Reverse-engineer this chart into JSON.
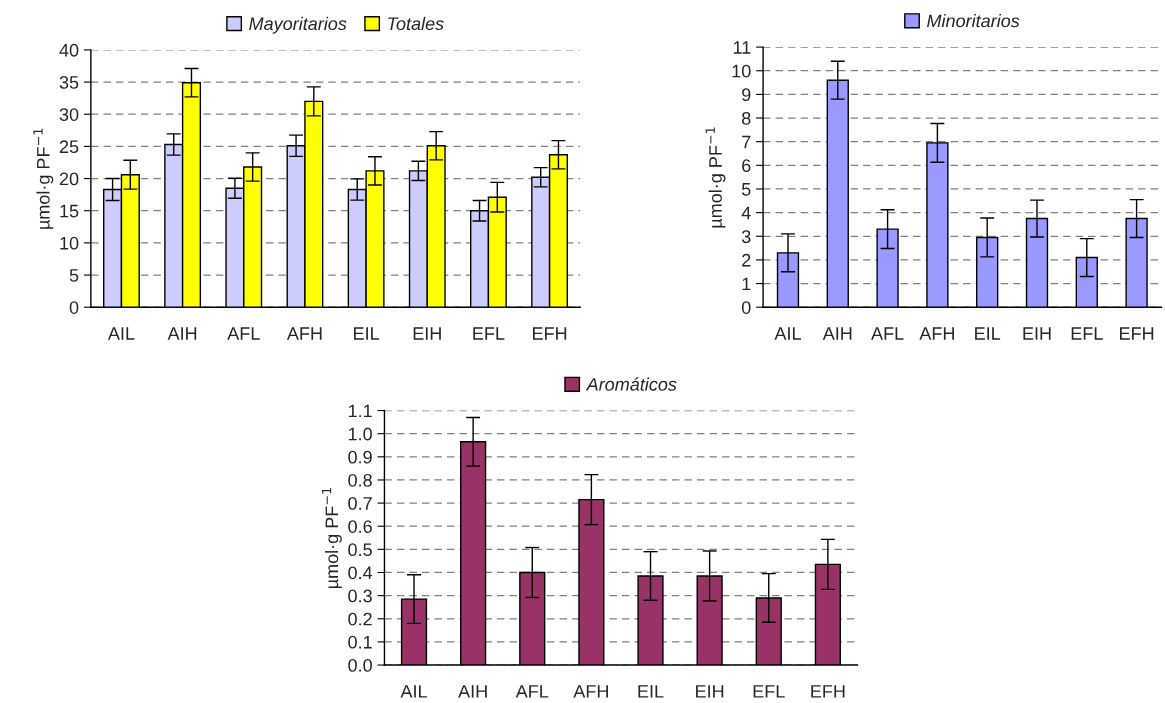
{
  "chart_data": [
    {
      "type": "bar",
      "categories": [
        "AIL",
        "AIH",
        "AFL",
        "AFH",
        "EIL",
        "EIH",
        "EFL",
        "EFH"
      ],
      "ylabel": "µmol·g PF$^{−1}$",
      "ylim": [
        0,
        40
      ],
      "yticks": [
        0,
        5,
        10,
        15,
        20,
        25,
        30,
        35,
        40
      ],
      "grid": "y",
      "legend": "top",
      "series": [
        {
          "name": "Mayoritarios",
          "color": "#ccccff",
          "values": [
            18.3,
            25.3,
            18.5,
            25.1,
            18.3,
            21.2,
            15.0,
            20.2
          ],
          "errors": [
            1.7,
            1.65,
            1.55,
            1.65,
            1.65,
            1.5,
            1.6,
            1.5
          ]
        },
        {
          "name": "Totales",
          "color": "#ffff00",
          "values": [
            20.6,
            34.9,
            21.8,
            32.0,
            21.2,
            25.1,
            17.1,
            23.7
          ],
          "errors": [
            2.25,
            2.2,
            2.2,
            2.25,
            2.2,
            2.2,
            2.3,
            2.2
          ]
        }
      ]
    },
    {
      "type": "bar",
      "categories": [
        "AIL",
        "AIH",
        "AFL",
        "AFH",
        "EIL",
        "EIH",
        "EFL",
        "EFH"
      ],
      "ylabel": "µmol·g PF$^{−1}$",
      "ylim": [
        0,
        11
      ],
      "yticks": [
        0,
        1,
        2,
        3,
        4,
        5,
        6,
        7,
        8,
        9,
        10,
        11
      ],
      "grid": "y",
      "legend": "top",
      "series": [
        {
          "name": "Minoritarios",
          "color": "#9999ff",
          "values": [
            2.3,
            9.6,
            3.3,
            6.95,
            2.95,
            3.75,
            2.1,
            3.75
          ],
          "errors": [
            0.8,
            0.8,
            0.82,
            0.82,
            0.82,
            0.78,
            0.8,
            0.8
          ]
        }
      ]
    },
    {
      "type": "bar",
      "categories": [
        "AIL",
        "AIH",
        "AFL",
        "AFH",
        "EIL",
        "EIH",
        "EFL",
        "EFH"
      ],
      "ylabel": "µmol·g PF$^{−1}$",
      "ylim": [
        0,
        1.1
      ],
      "yticks": [
        {
          "value": 0,
          "label": "0.0"
        },
        0.1,
        0.2,
        0.3,
        0.4,
        0.5,
        0.6,
        0.7,
        0.8,
        0.9,
        {
          "value": 1.0,
          "label": "1.0"
        },
        1.1
      ],
      "grid": "y",
      "legend": "top",
      "series": [
        {
          "name": "Aromáticos",
          "color": "#993366",
          "values": [
            0.285,
            0.965,
            0.4,
            0.715,
            0.385,
            0.385,
            0.29,
            0.435
          ],
          "errors": [
            0.105,
            0.105,
            0.108,
            0.108,
            0.105,
            0.108,
            0.105,
            0.108
          ]
        }
      ]
    }
  ]
}
